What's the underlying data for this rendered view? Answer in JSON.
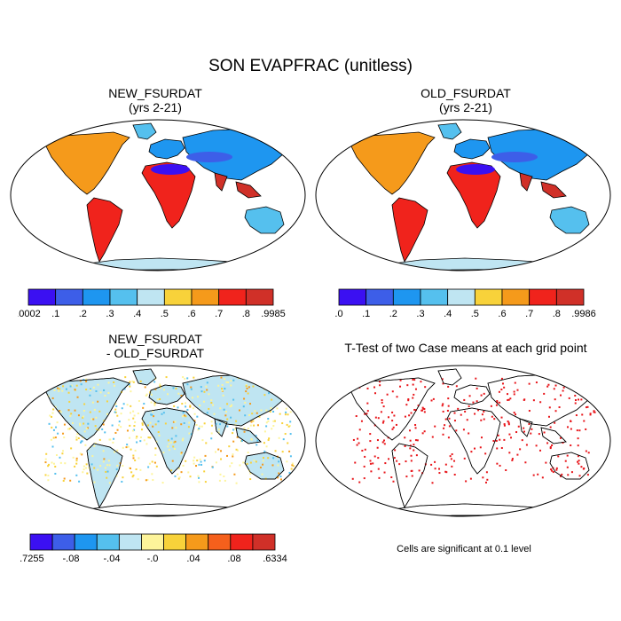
{
  "title": "SON EVAPFRAC (unitless)",
  "panels": [
    {
      "id": "new",
      "title_line1": "NEW_FSURDAT",
      "title_line2": "(yrs 2-21)",
      "colorbar": {
        "colors": [
          "#3b10f2",
          "#3d5ee8",
          "#1e96f0",
          "#55c0ee",
          "#bfe5f2",
          "#f8d23a",
          "#f59a1b",
          "#f0231c",
          "#d03028"
        ],
        "labels": [
          ".0002",
          ".1",
          ".2",
          ".3",
          ".4",
          ".5",
          ".6",
          ".7",
          ".8",
          ".9985"
        ]
      }
    },
    {
      "id": "old",
      "title_line1": "OLD_FSURDAT",
      "title_line2": "(yrs 2-21)",
      "colorbar": {
        "colors": [
          "#3b10f2",
          "#3d5ee8",
          "#1e96f0",
          "#55c0ee",
          "#bfe5f2",
          "#f8d23a",
          "#f59a1b",
          "#f0231c",
          "#d03028"
        ],
        "labels": [
          ".0",
          ".1",
          ".2",
          ".3",
          ".4",
          ".5",
          ".6",
          ".7",
          ".8",
          ".9986"
        ]
      }
    },
    {
      "id": "diff",
      "title_line1": "NEW_FSURDAT",
      "title_line2": "- OLD_FSURDAT",
      "colorbar": {
        "colors": [
          "#3b10f2",
          "#3d5ee8",
          "#1e96f0",
          "#55c0ee",
          "#bfe5f2",
          "#fdf49a",
          "#f8d23a",
          "#f59a1b",
          "#f5601c",
          "#f0231c",
          "#d03028"
        ],
        "labels": [
          "-.7255",
          "-.08",
          "-.04",
          "-.0",
          ".04",
          ".08",
          ".6334"
        ]
      }
    },
    {
      "id": "ttest",
      "title_line1": "T-Test of two Case means at each grid point",
      "title_line2": "",
      "note": "Cells are significant at 0.1 level"
    }
  ]
}
